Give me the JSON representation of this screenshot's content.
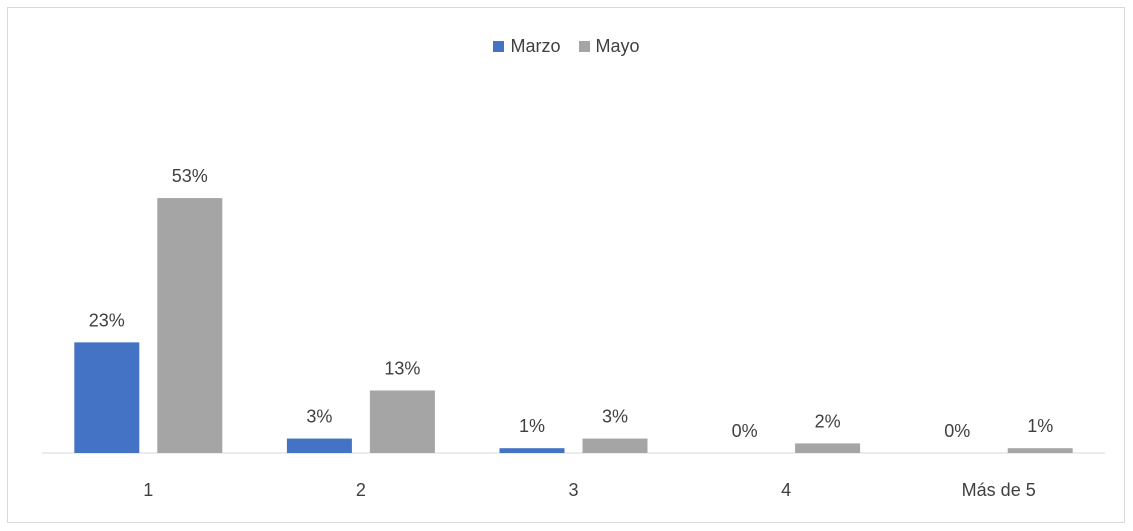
{
  "chart_data": {
    "type": "bar",
    "categories": [
      "1",
      "2",
      "3",
      "4",
      "Más de 5"
    ],
    "series": [
      {
        "name": "Marzo",
        "values": [
          23,
          3,
          1,
          0,
          0
        ],
        "labels": [
          "23%",
          "3%",
          "1%",
          "0%",
          "0%"
        ],
        "color": "#4472c4"
      },
      {
        "name": "Mayo",
        "values": [
          53,
          13,
          3,
          2,
          1
        ],
        "labels": [
          "53%",
          "13%",
          "3%",
          "2%",
          "1%"
        ],
        "color": "#a5a5a5"
      }
    ],
    "value_unit": "%",
    "ylim": [
      0,
      60
    ],
    "legend_position": "top",
    "grid": false,
    "data_labels": true
  }
}
